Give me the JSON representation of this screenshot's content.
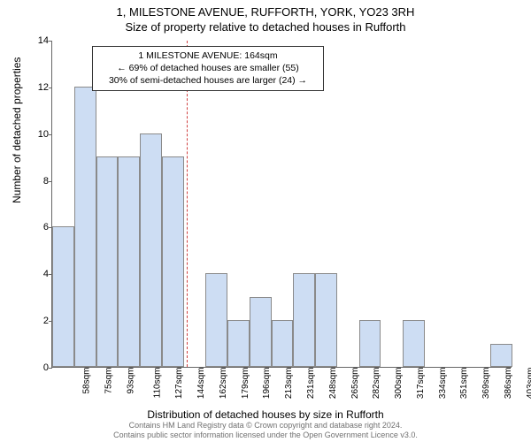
{
  "title": {
    "line1": "1, MILESTONE AVENUE, RUFFORTH, YORK, YO23 3RH",
    "line2": "Size of property relative to detached houses in Rufforth"
  },
  "chart": {
    "type": "histogram",
    "ylabel": "Number of detached properties",
    "xlabel": "Distribution of detached houses by size in Rufforth",
    "ylim": [
      0,
      14
    ],
    "ytick_step": 2,
    "yticks": [
      0,
      2,
      4,
      6,
      8,
      10,
      12,
      14
    ],
    "bar_fill": "#cdddf3",
    "bar_stroke": "#8a8a8a",
    "background": "#ffffff",
    "axis_color": "#666666",
    "marker_line_color": "#d04040",
    "marker_x_value": 164,
    "x_start": 58,
    "x_step": 17.25,
    "bars": [
      {
        "label": "58sqm",
        "value": 6
      },
      {
        "label": "75sqm",
        "value": 12
      },
      {
        "label": "93sqm",
        "value": 9
      },
      {
        "label": "110sqm",
        "value": 9
      },
      {
        "label": "127sqm",
        "value": 10
      },
      {
        "label": "144sqm",
        "value": 9
      },
      {
        "label": "162sqm",
        "value": 0
      },
      {
        "label": "179sqm",
        "value": 4
      },
      {
        "label": "196sqm",
        "value": 2
      },
      {
        "label": "213sqm",
        "value": 3
      },
      {
        "label": "231sqm",
        "value": 2
      },
      {
        "label": "248sqm",
        "value": 4
      },
      {
        "label": "265sqm",
        "value": 4
      },
      {
        "label": "282sqm",
        "value": 0
      },
      {
        "label": "300sqm",
        "value": 2
      },
      {
        "label": "317sqm",
        "value": 0
      },
      {
        "label": "334sqm",
        "value": 2
      },
      {
        "label": "351sqm",
        "value": 0
      },
      {
        "label": "369sqm",
        "value": 0
      },
      {
        "label": "386sqm",
        "value": 0
      },
      {
        "label": "403sqm",
        "value": 1
      }
    ],
    "annotation": {
      "line1": "1 MILESTONE AVENUE: 164sqm",
      "line2": "← 69% of detached houses are smaller (55)",
      "line3": "30% of semi-detached houses are larger (24) →"
    }
  },
  "footer": {
    "line1": "Contains HM Land Registry data © Crown copyright and database right 2024.",
    "line2": "Contains public sector information licensed under the Open Government Licence v3.0."
  }
}
